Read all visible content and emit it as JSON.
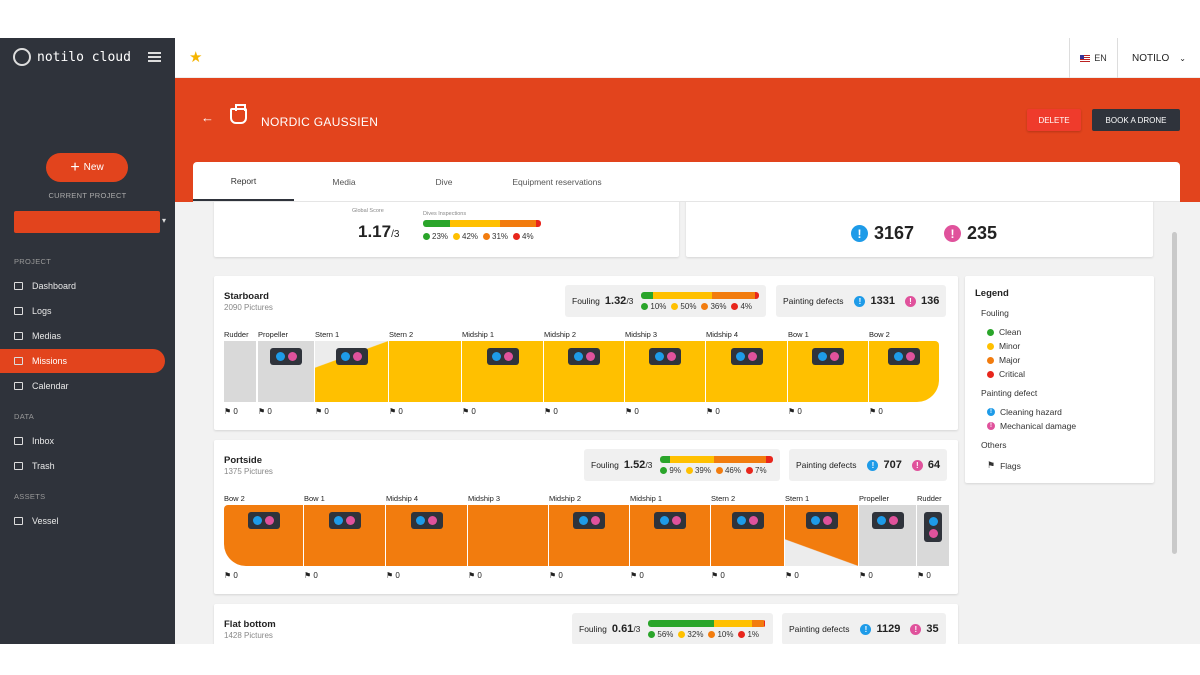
{
  "app": {
    "logo_text": "notilo cloud"
  },
  "sidebar": {
    "new_label": "New",
    "current_project_label": "CURRENT PROJECT",
    "sections": {
      "project": "PROJECT",
      "data": "DATA",
      "assets": "ASSETS"
    },
    "items": [
      {
        "label": "Dashboard",
        "icon": "dashboard-icon"
      },
      {
        "label": "Logs",
        "icon": "logs-icon"
      },
      {
        "label": "Medias",
        "icon": "medias-icon"
      },
      {
        "label": "Missions",
        "icon": "missions-icon",
        "active": true
      },
      {
        "label": "Calendar",
        "icon": "calendar-icon"
      },
      {
        "label": "Inbox",
        "icon": "inbox-icon"
      },
      {
        "label": "Trash",
        "icon": "trash-icon"
      },
      {
        "label": "Vessel",
        "icon": "vessel-icon"
      }
    ]
  },
  "topbar": {
    "language": "EN",
    "user": "NOTILO"
  },
  "header": {
    "vessel_name": "NORDIC GAUSSIEN",
    "delete_label": "DELETE",
    "book_label": "BOOK A DRONE"
  },
  "tabs": [
    "Report",
    "Media",
    "Dive",
    "Equipment reservations"
  ],
  "summary": {
    "global_score_label": "Global Score",
    "score": "1.17",
    "score_max": "/3",
    "dives_label": "Dives Inspections",
    "dist": [
      "23%",
      "42%",
      "31%",
      "4%"
    ],
    "dist_values": [
      23,
      42,
      31,
      4
    ],
    "cleaning_hazard": "3167",
    "mechanical_damage": "235"
  },
  "colors": {
    "clean": "#2aa52a",
    "minor": "#ffc000",
    "major": "#f27c0e",
    "critical": "#e8261c",
    "accent": "#e2441d",
    "blue": "#1e9be8",
    "pink": "#e0529c"
  },
  "sections": [
    {
      "title": "Starboard",
      "pictures": "2090 Pictures",
      "fouling_label": "Fouling",
      "fouling_score": "1.32",
      "fouling_max": "/3",
      "dist": [
        "10%",
        "50%",
        "36%",
        "4%"
      ],
      "dist_values": [
        10,
        50,
        36,
        4
      ],
      "defects_label": "Painting defects",
      "blue": "1331",
      "pink": "136",
      "zones": [
        {
          "label": "Rudder",
          "flags": "0"
        },
        {
          "label": "Propeller",
          "flags": "0"
        },
        {
          "label": "Stern 1",
          "flags": "0"
        },
        {
          "label": "Stern 2",
          "flags": "0"
        },
        {
          "label": "Midship 1",
          "flags": "0"
        },
        {
          "label": "Midship 2",
          "flags": "0"
        },
        {
          "label": "Midship 3",
          "flags": "0"
        },
        {
          "label": "Midship 4",
          "flags": "0"
        },
        {
          "label": "Bow 1",
          "flags": "0"
        },
        {
          "label": "Bow 2",
          "flags": "0"
        }
      ]
    },
    {
      "title": "Portside",
      "pictures": "1375 Pictures",
      "fouling_label": "Fouling",
      "fouling_score": "1.52",
      "fouling_max": "/3",
      "dist": [
        "9%",
        "39%",
        "46%",
        "7%"
      ],
      "dist_values": [
        9,
        39,
        46,
        7
      ],
      "defects_label": "Painting defects",
      "blue": "707",
      "pink": "64",
      "zones": [
        {
          "label": "Bow 2",
          "flags": "0"
        },
        {
          "label": "Bow 1",
          "flags": "0"
        },
        {
          "label": "Midship 4",
          "flags": "0"
        },
        {
          "label": "Midship 3",
          "flags": "0"
        },
        {
          "label": "Midship 2",
          "flags": "0"
        },
        {
          "label": "Midship 1",
          "flags": "0"
        },
        {
          "label": "Stern 2",
          "flags": "0"
        },
        {
          "label": "Stern 1",
          "flags": "0"
        },
        {
          "label": "Propeller",
          "flags": "0"
        },
        {
          "label": "Rudder",
          "flags": "0"
        }
      ]
    },
    {
      "title": "Flat bottom",
      "pictures": "1428 Pictures",
      "fouling_label": "Fouling",
      "fouling_score": "0.61",
      "fouling_max": "/3",
      "dist": [
        "56%",
        "32%",
        "10%",
        "1%"
      ],
      "dist_values": [
        56,
        32,
        10,
        1
      ],
      "defects_label": "Painting defects",
      "blue": "1129",
      "pink": "35"
    }
  ],
  "legend": {
    "title": "Legend",
    "fouling_title": "Fouling",
    "fouling": [
      "Clean",
      "Minor",
      "Major",
      "Critical"
    ],
    "painting_title": "Painting defect",
    "painting": [
      "Cleaning hazard",
      "Mechanical damage"
    ],
    "others_title": "Others",
    "others": [
      "Flags"
    ]
  }
}
